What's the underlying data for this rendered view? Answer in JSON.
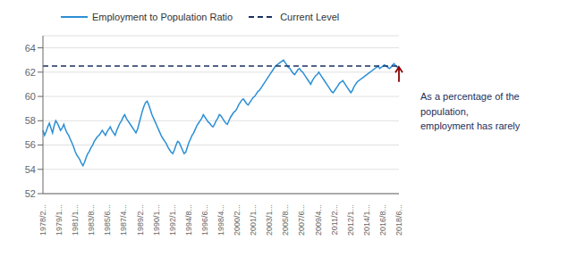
{
  "chart_data": {
    "type": "line",
    "categories": [
      "1978/2...",
      null,
      null,
      null,
      null,
      null,
      null,
      null,
      null,
      null,
      "1979/1...",
      null,
      null,
      null,
      null,
      null,
      null,
      null,
      null,
      null,
      "1981/1...",
      null,
      null,
      null,
      null,
      null,
      null,
      null,
      null,
      null,
      "1983/8...",
      null,
      null,
      null,
      null,
      null,
      null,
      null,
      null,
      null,
      "1985/6...",
      null,
      null,
      null,
      null,
      null,
      null,
      null,
      null,
      null,
      "1987/4...",
      null,
      null,
      null,
      null,
      null,
      null,
      null,
      null,
      null,
      null,
      "1989/2...",
      null,
      null,
      null,
      null,
      null,
      null,
      null,
      null,
      null,
      "1990/1...",
      null,
      null,
      null,
      null,
      null,
      null,
      null,
      null,
      null,
      "1992/1...",
      null,
      null,
      null,
      null,
      null,
      null,
      null,
      null,
      null,
      "1994/8...",
      null,
      null,
      null,
      null,
      null,
      null,
      null,
      null,
      null,
      "1996/6...",
      null,
      null,
      null,
      null,
      null,
      null,
      null,
      null,
      null,
      "1998/4...",
      null,
      null,
      null,
      null,
      null,
      null,
      null,
      null,
      null,
      "2000/2...",
      null,
      null,
      null,
      null,
      null,
      null,
      null,
      null,
      null,
      "2001/1...",
      null,
      null,
      null,
      null,
      null,
      null,
      null,
      null,
      null,
      "2003/1...",
      null,
      null,
      null,
      null,
      null,
      null,
      null,
      null,
      null,
      "2005/8...",
      null,
      null,
      null,
      null,
      null,
      null,
      null,
      null,
      null,
      "2007/6...",
      null,
      null,
      null,
      null,
      null,
      null,
      null,
      null,
      null,
      null,
      "2009/4...",
      null,
      null,
      null,
      null,
      null,
      null,
      null,
      null,
      null,
      "2011/2...",
      null,
      null,
      null,
      null,
      null,
      null,
      null,
      null,
      null,
      "2012/1...",
      null,
      null,
      null,
      null,
      null,
      null,
      null,
      null,
      null,
      "2014/1...",
      null,
      null,
      null,
      null,
      null,
      null,
      null,
      null,
      null,
      "2016/8...",
      null,
      null,
      null,
      null,
      null,
      null,
      null,
      null,
      null,
      "2018/6..."
    ],
    "series": [
      {
        "name": "Employment to Population Ratio",
        "color": "#2b8fd4",
        "values": [
          57.2,
          56.8,
          57.1,
          57.5,
          57.8,
          57.4,
          57.0,
          57.6,
          58.0,
          57.8,
          57.5,
          57.2,
          57.4,
          57.7,
          57.3,
          57.0,
          56.8,
          56.5,
          56.2,
          55.9,
          55.5,
          55.2,
          55.0,
          54.8,
          54.5,
          54.3,
          54.6,
          55.0,
          55.3,
          55.5,
          55.8,
          56.0,
          56.3,
          56.5,
          56.7,
          56.8,
          57.0,
          57.2,
          57.0,
          56.8,
          57.1,
          57.3,
          57.5,
          57.2,
          57.0,
          56.8,
          57.2,
          57.5,
          57.8,
          58.0,
          58.3,
          58.5,
          58.2,
          58.0,
          57.8,
          57.6,
          57.4,
          57.2,
          57.0,
          57.3,
          57.8,
          58.3,
          58.8,
          59.2,
          59.5,
          59.6,
          59.3,
          58.9,
          58.5,
          58.2,
          57.9,
          57.6,
          57.3,
          57.0,
          56.7,
          56.5,
          56.3,
          56.1,
          55.8,
          55.6,
          55.4,
          55.3,
          55.6,
          56.0,
          56.3,
          56.2,
          55.9,
          55.6,
          55.3,
          55.4,
          55.8,
          56.2,
          56.5,
          56.8,
          57.0,
          57.3,
          57.6,
          57.8,
          58.0,
          58.2,
          58.5,
          58.3,
          58.1,
          57.9,
          57.8,
          57.6,
          57.5,
          57.7,
          58.0,
          58.2,
          58.5,
          58.4,
          58.2,
          58.0,
          57.8,
          57.7,
          58.0,
          58.3,
          58.5,
          58.7,
          58.8,
          59.0,
          59.3,
          59.5,
          59.7,
          59.8,
          59.6,
          59.4,
          59.3,
          59.5,
          59.7,
          59.9,
          60.0,
          60.2,
          60.4,
          60.5,
          60.7,
          60.9,
          61.1,
          61.3,
          61.5,
          61.7,
          61.9,
          62.1,
          62.3,
          62.5,
          62.6,
          62.7,
          62.8,
          62.9,
          63.0,
          62.8,
          62.6,
          62.4,
          62.3,
          62.1,
          61.9,
          61.8,
          62.0,
          62.2,
          62.3,
          62.1,
          62.0,
          61.8,
          61.6,
          61.4,
          61.2,
          61.0,
          61.3,
          61.5,
          61.7,
          61.8,
          62.0,
          61.8,
          61.6,
          61.4,
          61.2,
          61.0,
          60.8,
          60.6,
          60.4,
          60.3,
          60.5,
          60.7,
          60.9,
          61.1,
          61.2,
          61.3,
          61.1,
          60.9,
          60.7,
          60.5,
          60.3,
          60.5,
          60.8,
          61.0,
          61.2,
          61.3,
          61.4,
          61.5,
          61.6,
          61.7,
          61.8,
          61.9,
          62.0,
          62.1,
          62.2,
          62.3,
          62.4,
          62.5,
          62.3,
          62.4,
          62.5,
          62.6,
          62.5,
          62.4,
          62.3,
          62.4,
          62.6,
          62.7,
          62.5,
          62.4,
          62.5
        ]
      }
    ],
    "reference_lines": [
      {
        "name": "Current Level",
        "value": 62.5,
        "color": "#1a3060",
        "line_style": "dashed"
      }
    ],
    "annotation": {
      "text": "As a percentage of the\npopulation,\nemployment has rarely",
      "color": "#1a3060"
    },
    "arrow": {
      "from": 61.2,
      "to": 62.42,
      "color": "#8b0000"
    },
    "ylim": [
      52,
      65
    ],
    "yticks": [
      52,
      54,
      56,
      58,
      60,
      62,
      64
    ],
    "grid": true
  }
}
